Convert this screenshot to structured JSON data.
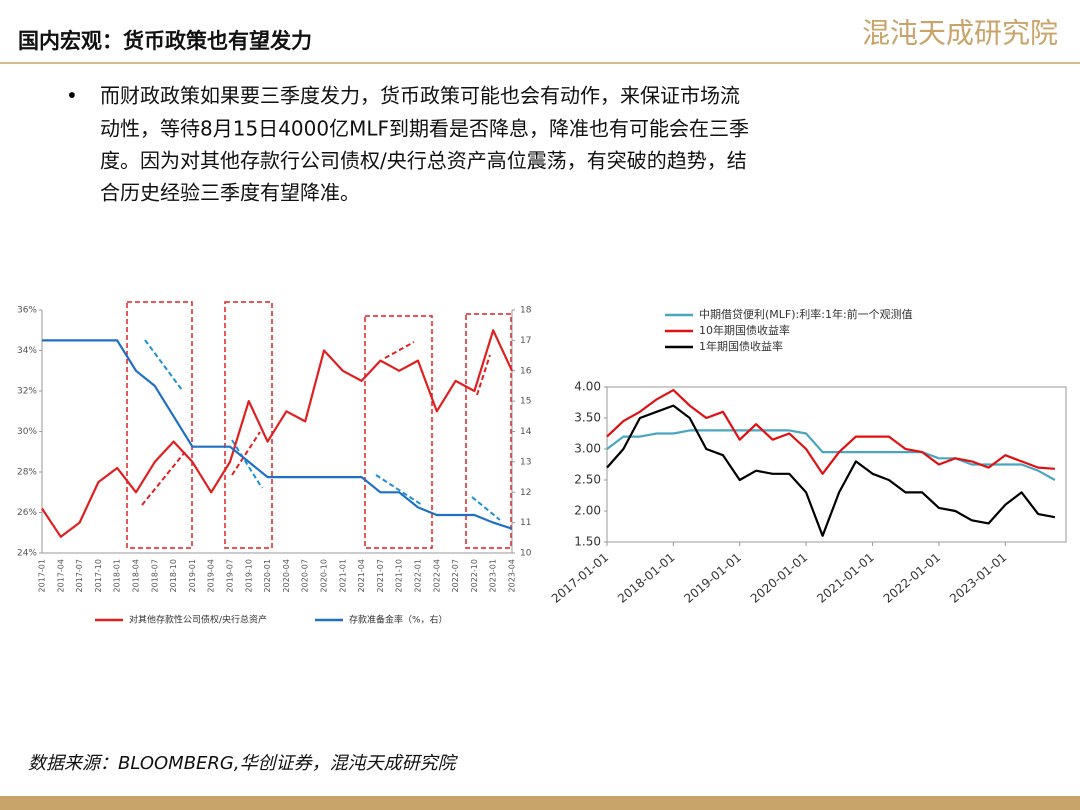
{
  "header": {
    "title": "国内宏观：货币政策也有望发力",
    "logo": "混沌天成研究院"
  },
  "bullet": [
    "而财政政策如果要三季度发力，货币政策可能也会有动作，来保证市场流",
    "动性，等待8月15日4000亿MLF到期看是否降息，降准也有可能会在三季",
    "度。因为对其他存款行公司债权/央行总资产高位震荡，有突破的趋势，结",
    "合历史经验三季度有望降准。"
  ],
  "source": "数据来源：BLOOMBERG,华创证券，混沌天成研究院",
  "chart_data": [
    {
      "type": "line",
      "categories": [
        "2017-01",
        "2017-04",
        "2017-07",
        "2017-10",
        "2018-01",
        "2018-04",
        "2018-07",
        "2018-10",
        "2019-01",
        "2019-04",
        "2019-07",
        "2019-10",
        "2020-01",
        "2020-04",
        "2020-07",
        "2020-10",
        "2021-01",
        "2021-04",
        "2021-07",
        "2021-10",
        "2022-01",
        "2022-04",
        "2022-07",
        "2022-10",
        "2023-01",
        "2023-04"
      ],
      "series": [
        {
          "name": "对其他存款性公司债权/央行总资产",
          "color": "#e02020",
          "values": [
            26.2,
            24.8,
            25.5,
            27.5,
            28.2,
            27.0,
            28.5,
            29.5,
            28.5,
            27.0,
            28.5,
            31.5,
            29.5,
            31.0,
            30.5,
            34.0,
            33.0,
            32.5,
            33.5,
            33.0,
            33.5,
            31.0,
            32.5,
            32.0,
            35.0,
            33.0
          ]
        },
        {
          "name": "存款准备金率（%，右）",
          "color": "#1f6fc5",
          "axis": "y2",
          "values": [
            17.0,
            17.0,
            17.0,
            17.0,
            17.0,
            16.0,
            15.5,
            14.5,
            13.5,
            13.5,
            13.5,
            13.0,
            12.5,
            12.5,
            12.5,
            12.5,
            12.5,
            12.5,
            12.0,
            12.0,
            11.5,
            11.25,
            11.25,
            11.25,
            11.0,
            10.8
          ]
        }
      ],
      "ylim": [
        24,
        36
      ],
      "yticks": [
        {
          "value": 24,
          "label": "24%"
        },
        {
          "value": 26,
          "label": "26%"
        },
        {
          "value": 28,
          "label": "28%"
        },
        {
          "value": 30,
          "label": "30%"
        },
        {
          "value": 32,
          "label": "32%"
        },
        {
          "value": 34,
          "label": "34%"
        },
        {
          "value": 36,
          "label": "36%"
        }
      ],
      "y2lim": [
        10,
        18
      ],
      "y2ticks": [
        10,
        11,
        12,
        13,
        14,
        15,
        16,
        17,
        18
      ]
    },
    {
      "type": "line",
      "x": [
        "2017-01-01",
        "2017-04-01",
        "2017-07-01",
        "2017-10-01",
        "2018-01-01",
        "2018-04-01",
        "2018-07-01",
        "2018-10-01",
        "2019-01-01",
        "2019-04-01",
        "2019-07-01",
        "2019-10-01",
        "2020-01-01",
        "2020-04-01",
        "2020-07-01",
        "2020-10-01",
        "2021-01-01",
        "2021-04-01",
        "2021-07-01",
        "2021-10-01",
        "2022-01-01",
        "2022-04-01",
        "2022-07-01",
        "2022-10-01",
        "2023-01-01",
        "2023-04-01",
        "2023-07-01",
        "2023-10-01"
      ],
      "series": [
        {
          "name": "中期借贷便利(MLF):利率:1年:前一个观测值",
          "color": "#4aa6c0",
          "values": [
            3.0,
            3.2,
            3.2,
            3.25,
            3.25,
            3.3,
            3.3,
            3.3,
            3.3,
            3.3,
            3.3,
            3.3,
            3.25,
            2.95,
            2.95,
            2.95,
            2.95,
            2.95,
            2.95,
            2.95,
            2.85,
            2.85,
            2.75,
            2.75,
            2.75,
            2.75,
            2.65,
            2.5
          ]
        },
        {
          "name": "10年期国债收益率",
          "color": "#e01010",
          "values": [
            3.2,
            3.45,
            3.6,
            3.8,
            3.95,
            3.7,
            3.5,
            3.6,
            3.15,
            3.4,
            3.15,
            3.25,
            3.0,
            2.6,
            2.95,
            3.2,
            3.2,
            3.2,
            3.0,
            2.95,
            2.75,
            2.85,
            2.8,
            2.7,
            2.9,
            2.8,
            2.7,
            2.68
          ]
        },
        {
          "name": "1年期国债收益率",
          "color": "#000000",
          "values": [
            2.7,
            3.0,
            3.5,
            3.6,
            3.7,
            3.5,
            3.0,
            2.9,
            2.5,
            2.65,
            2.6,
            2.6,
            2.3,
            1.6,
            2.3,
            2.8,
            2.6,
            2.5,
            2.3,
            2.3,
            2.05,
            2.0,
            1.85,
            1.8,
            2.1,
            2.3,
            1.95,
            1.9
          ]
        }
      ],
      "xlim": [
        "2017-01-01",
        "2023-12-01"
      ],
      "xticks": [
        "2017-01-01",
        "2018-01-01",
        "2019-01-01",
        "2020-01-01",
        "2021-01-01",
        "2022-01-01",
        "2023-01-01"
      ],
      "ylim": [
        1.5,
        4.0
      ],
      "yticks": [
        {
          "value": 1.5,
          "label": "1.50"
        },
        {
          "value": 2.0,
          "label": "2.00"
        },
        {
          "value": 2.5,
          "label": "2.50"
        },
        {
          "value": 3.0,
          "label": "3.00"
        },
        {
          "value": 3.5,
          "label": "3.50"
        },
        {
          "value": 4.0,
          "label": "4.00"
        }
      ]
    }
  ]
}
